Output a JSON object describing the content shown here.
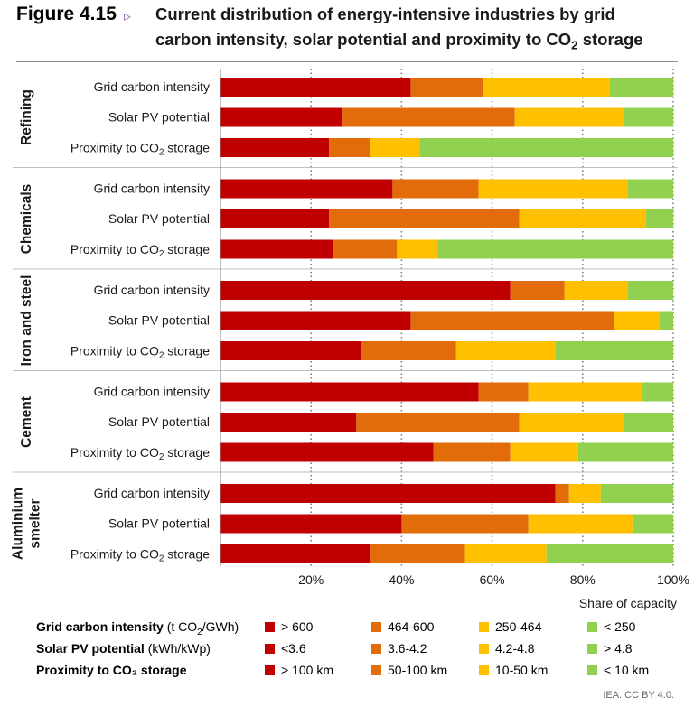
{
  "header": {
    "figure_number": "Figure 4.15",
    "arrow": "▹",
    "title_line1": "Current distribution of energy-intensive industries by grid",
    "title_line2_pre": "carbon intensity, solar potential and proximity to CO",
    "title_line2_sub": "2",
    "title_line2_post": " storage"
  },
  "colors": {
    "cat1": "#c00000",
    "cat2": "#e26b0a",
    "cat3": "#ffc000",
    "cat4": "#92d050"
  },
  "chart_data": {
    "type": "bar",
    "orientation": "horizontal",
    "stacked": true,
    "xlabel": "Share of capacity",
    "xlim": [
      0,
      100
    ],
    "xticks": [
      20,
      40,
      60,
      80,
      100
    ],
    "xtick_labels": [
      "20%",
      "40%",
      "60%",
      "80%",
      "100%"
    ],
    "groups": [
      {
        "name": "Refining",
        "bars": [
          {
            "label": "Grid carbon intensity",
            "values": [
              42,
              16,
              28,
              14
            ]
          },
          {
            "label": "Solar PV potential",
            "values": [
              27,
              38,
              24,
              11
            ]
          },
          {
            "label": "Proximity to CO₂ storage",
            "values": [
              24,
              9,
              11,
              56
            ]
          }
        ]
      },
      {
        "name": "Chemicals",
        "bars": [
          {
            "label": "Grid carbon intensity",
            "values": [
              38,
              19,
              33,
              10
            ]
          },
          {
            "label": "Solar PV potential",
            "values": [
              24,
              42,
              28,
              6
            ]
          },
          {
            "label": "Proximity to CO₂ storage",
            "values": [
              25,
              14,
              9,
              52
            ]
          }
        ]
      },
      {
        "name": "Iron and steel",
        "bars": [
          {
            "label": "Grid carbon intensity",
            "values": [
              64,
              12,
              14,
              10
            ]
          },
          {
            "label": "Solar PV potential",
            "values": [
              42,
              45,
              10,
              3
            ]
          },
          {
            "label": "Proximity to CO₂ storage",
            "values": [
              31,
              21,
              22,
              26
            ]
          }
        ]
      },
      {
        "name": "Cement",
        "bars": [
          {
            "label": "Grid carbon intensity",
            "values": [
              57,
              11,
              25,
              7
            ]
          },
          {
            "label": "Solar PV potential",
            "values": [
              30,
              36,
              23,
              11
            ]
          },
          {
            "label": "Proximity to CO₂ storage",
            "values": [
              47,
              17,
              15,
              21
            ]
          }
        ]
      },
      {
        "name": "Aluminium smelter",
        "bars": [
          {
            "label": "Grid carbon intensity",
            "values": [
              74,
              3,
              7,
              16
            ]
          },
          {
            "label": "Solar PV potential",
            "values": [
              40,
              28,
              23,
              9
            ]
          },
          {
            "label": "Proximity to CO₂ storage",
            "values": [
              33,
              21,
              18,
              28
            ]
          }
        ]
      }
    ],
    "series_names_by_metric": {
      "Grid carbon intensity": [
        "> 600",
        "464-600",
        "250-464",
        "< 250"
      ],
      "Solar PV potential": [
        "<3.6",
        "3.6-4.2",
        "4.2-4.8",
        "> 4.8"
      ],
      "Proximity to CO₂ storage": [
        "> 100 km",
        "50-100 km",
        "10-50 km",
        "< 10 km"
      ]
    },
    "grid": "vertical dotted at ticks"
  },
  "legend": {
    "rows": [
      {
        "title": "Grid carbon intensity",
        "unit_pre": " (t CO",
        "unit_sub": "2",
        "unit_post": "/GWh)",
        "items": [
          "> 600",
          "464-600",
          "250-464",
          "< 250"
        ]
      },
      {
        "title": "Solar PV potential",
        "unit_pre": " (kWh/kWp)",
        "unit_sub": "",
        "unit_post": "",
        "items": [
          "<3.6",
          "3.6-4.2",
          "4.2-4.8",
          "> 4.8"
        ]
      },
      {
        "title": "Proximity to CO₂ storage",
        "unit_pre": "",
        "unit_sub": "",
        "unit_post": "",
        "items": [
          "> 100 km",
          "50-100 km",
          "10-50 km",
          "< 10 km"
        ]
      }
    ]
  },
  "credit": "IEA. CC BY 4.0."
}
